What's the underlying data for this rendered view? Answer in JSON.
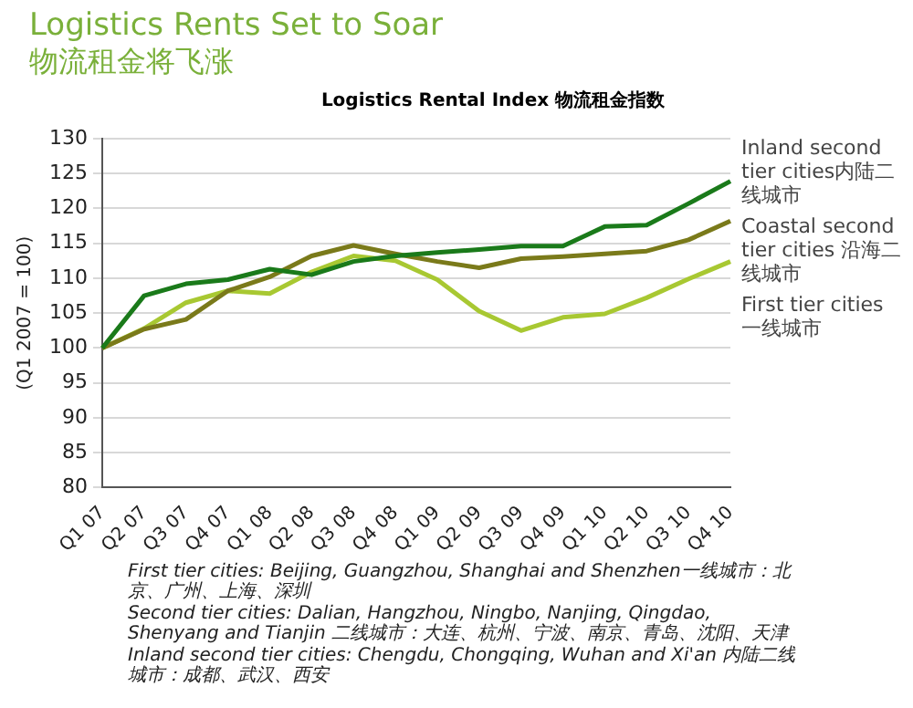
{
  "chart_data": {
    "type": "line",
    "title": "Logistics Rents Set to Soar",
    "subtitle": "物流租金将飞涨",
    "ylabel": "(Q1 2007 = 100)",
    "categories": [
      "Q1 07",
      "Q2 07",
      "Q3 07",
      "Q4 07",
      "Q1 08",
      "Q2 08",
      "Q3 08",
      "Q4 08",
      "Q1 09",
      "Q2 09",
      "Q3 09",
      "Q4 09",
      "Q1 10",
      "Q2 10",
      "Q3 10",
      "Q4 10"
    ],
    "series": [
      {
        "name": "Inland second tier cities内陆二线城市",
        "color": "#1a7a1a",
        "values": [
          100,
          107.5,
          109.2,
          109.8,
          111.3,
          110.5,
          112.4,
          113.2,
          113.7,
          114.1,
          114.6,
          114.6,
          117.4,
          117.6,
          120.7,
          123.9
        ]
      },
      {
        "name": "Coastal second tier cities 沿海二线城市",
        "color": "#7a7a1a",
        "values": [
          100,
          102.7,
          104.1,
          108.2,
          110.2,
          113.2,
          114.7,
          113.5,
          112.4,
          111.5,
          112.8,
          113.1,
          113.5,
          113.9,
          115.5,
          118.2
        ]
      },
      {
        "name": "First tier cities 一线城市",
        "color": "#a8c832",
        "values": [
          100,
          102.8,
          106.5,
          108.2,
          107.8,
          110.9,
          113.2,
          112.5,
          109.8,
          105.3,
          102.5,
          104.4,
          104.9,
          107.2,
          109.9,
          112.4
        ]
      }
    ],
    "ylim": [
      80,
      130
    ],
    "yticks": [
      80,
      85,
      90,
      95,
      100,
      105,
      110,
      115,
      120,
      125,
      130
    ],
    "grid": "y",
    "marker": "none",
    "line_style": "solid",
    "annotations": [
      "Logistics Rental Index 物流租金指数",
      "First tier cities: Beijing, Guangzhou, Shanghai and Shenzhen一线城市：北京、广州、上海、深圳",
      "Second tier cities: Dalian, Hangzhou, Ningbo, Nanjing, Qingdao, Shenyang and Tianjin 二线城市：大连、杭州、宁波、南京、青岛、沈阳、天津",
      "Inland second tier cities: Chengdu, Chongqing, Wuhan and Xi'an 内陆二线城市：成都、武汉、西安"
    ]
  }
}
